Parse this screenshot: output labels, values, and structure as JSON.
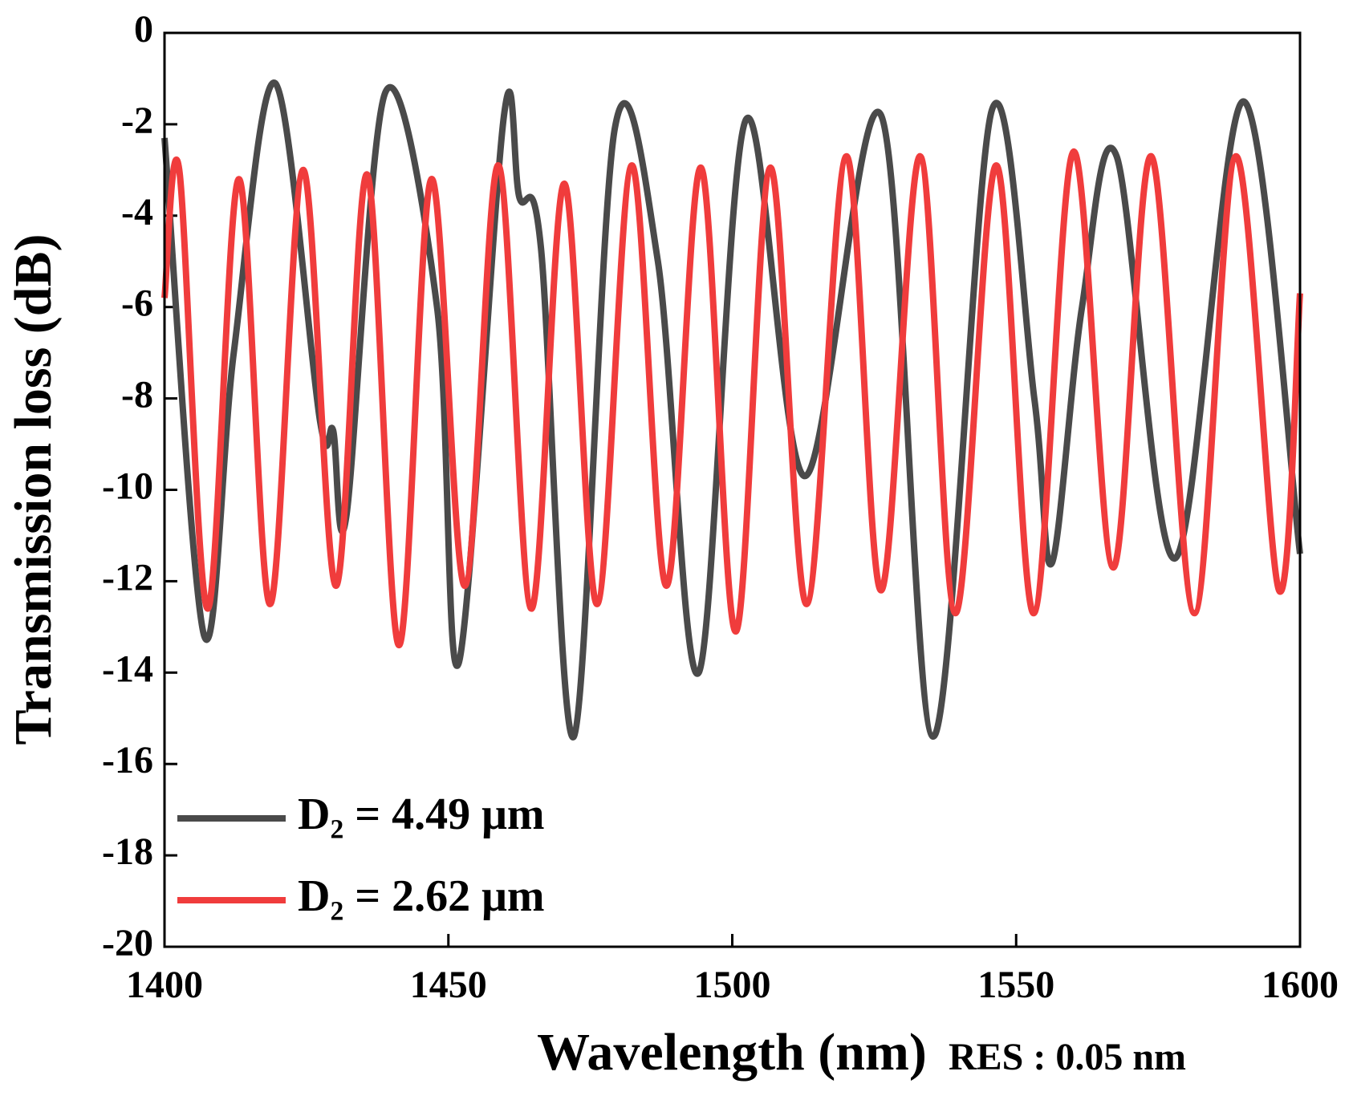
{
  "chart_data": {
    "type": "line",
    "xlabel": "Wavelength (nm)",
    "ylabel": "Transmission loss (dB)",
    "annotation": "RES : 0.05 nm",
    "xlim": [
      1400,
      1600
    ],
    "xticks": [
      1400,
      1450,
      1500,
      1550,
      1600
    ],
    "ylim": [
      -20,
      0
    ],
    "yticks": [
      0,
      -2,
      -4,
      -6,
      -8,
      -10,
      -12,
      -14,
      -16,
      -18,
      -20
    ],
    "legend": "lower left",
    "series": [
      {
        "name": "D₂ = 4.49 μm",
        "color": "#4a4a4a",
        "x": [
          1400,
          1407.0,
          1412.2,
          1419.5,
          1427.4,
          1429.7,
          1432.0,
          1438.9,
          1448.0,
          1451.8,
          1459.8,
          1462.5,
          1466.3,
          1472.1,
          1479.3,
          1486.9,
          1494.1,
          1502.4,
          1512.8,
          1526.2,
          1535.4,
          1545.7,
          1553.2,
          1556.3,
          1561.6,
          1567.7,
          1578.0,
          1590.0,
          1600
        ],
        "values": [
          -2.3,
          -13.2,
          -7,
          -1.1,
          -8.5,
          -8.7,
          -10.6,
          -1.3,
          -6,
          -13.8,
          -1.8,
          -3.6,
          -4.7,
          -15.4,
          -2.1,
          -5,
          -14,
          -1.9,
          -9.7,
          -1.8,
          -15.4,
          -1.7,
          -8,
          -11.6,
          -6,
          -2.7,
          -11.5,
          -1.5,
          -11.4
        ]
      },
      {
        "name": "D₂ = 2.62 μm",
        "color": "#f03c3c",
        "x": [
          1400,
          1402.6,
          1407.6,
          1413.1,
          1418.6,
          1424.4,
          1430.2,
          1435.7,
          1441.3,
          1447.0,
          1452.9,
          1458.8,
          1464.6,
          1470.4,
          1476.2,
          1482.3,
          1488.4,
          1494.5,
          1500.6,
          1506.7,
          1513.1,
          1520.1,
          1526.2,
          1533.1,
          1539.3,
          1546.5,
          1553.1,
          1560.1,
          1567.1,
          1573.8,
          1581.4,
          1588.7,
          1596.3,
          1600
        ],
        "values": [
          -5.8,
          -3.0,
          -12.6,
          -3.2,
          -12.5,
          -3.0,
          -12.1,
          -3.1,
          -13.4,
          -3.2,
          -12.1,
          -2.9,
          -12.6,
          -3.3,
          -12.5,
          -2.9,
          -12.1,
          -2.95,
          -13.1,
          -2.95,
          -12.5,
          -2.7,
          -12.2,
          -2.7,
          -12.7,
          -2.9,
          -12.7,
          -2.6,
          -11.7,
          -2.7,
          -12.7,
          -2.7,
          -12.2,
          -5.7
        ]
      }
    ]
  }
}
